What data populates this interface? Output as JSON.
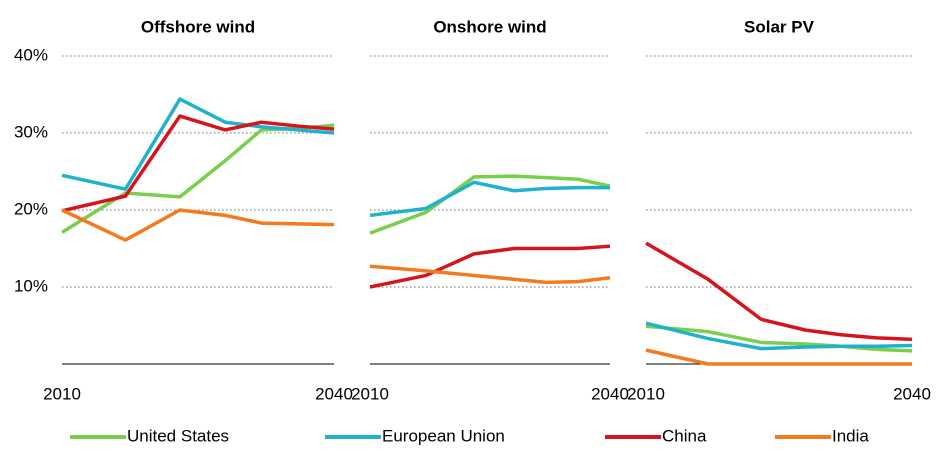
{
  "chart_data": [
    {
      "type": "line",
      "title": "Offshore wind",
      "x": [
        2010,
        2017,
        2023,
        2028,
        2032,
        2036,
        2040
      ],
      "xlim": [
        2010,
        2040
      ],
      "xticks": [
        2010,
        2040
      ],
      "ylim": [
        0,
        40
      ],
      "yticks": [
        {
          "value": 10,
          "label": "10%"
        },
        {
          "value": 20,
          "label": "20%"
        },
        {
          "value": 30,
          "label": "30%"
        },
        {
          "value": 40,
          "label": "40%"
        }
      ],
      "grid": true,
      "series": [
        {
          "values": [
            17.1,
            22.2,
            21.7,
            26.4,
            30.4,
            30.6,
            31.0
          ]
        },
        {
          "values": [
            24.5,
            22.7,
            34.4,
            31.4,
            30.8,
            30.4,
            30.0
          ]
        },
        {
          "values": [
            19.9,
            21.8,
            32.2,
            30.4,
            31.4,
            30.9,
            30.5
          ]
        },
        {
          "values": [
            20.0,
            16.1,
            20.0,
            19.3,
            18.3,
            18.2,
            18.1
          ]
        }
      ]
    },
    {
      "type": "line",
      "title": "Onshore wind",
      "x": [
        2010,
        2017,
        2023,
        2028,
        2032,
        2036,
        2040
      ],
      "xlim": [
        2010,
        2040
      ],
      "xticks": [
        2010,
        2040
      ],
      "ylim": [
        0,
        40
      ],
      "series": [
        {
          "values": [
            17.0,
            19.7,
            24.3,
            24.4,
            24.2,
            24.0,
            23.1
          ]
        },
        {
          "values": [
            19.3,
            20.2,
            23.6,
            22.5,
            22.8,
            22.9,
            22.9
          ]
        },
        {
          "values": [
            10.0,
            11.5,
            14.3,
            15.0,
            15.0,
            15.0,
            15.3
          ]
        },
        {
          "values": [
            12.7,
            12.1,
            11.5,
            11.0,
            10.6,
            10.7,
            11.2
          ]
        }
      ]
    },
    {
      "type": "line",
      "title": "Solar PV",
      "x": [
        2010,
        2017,
        2023,
        2028,
        2032,
        2036,
        2040
      ],
      "xlim": [
        2010,
        2040
      ],
      "xticks": [
        2010,
        2040
      ],
      "ylim": [
        0,
        40
      ],
      "series": [
        {
          "values": [
            4.9,
            4.2,
            2.8,
            2.6,
            2.3,
            1.9,
            1.7
          ]
        },
        {
          "values": [
            5.3,
            3.3,
            2.0,
            2.2,
            2.3,
            2.3,
            2.4
          ]
        },
        {
          "values": [
            15.7,
            11.0,
            5.8,
            4.4,
            3.8,
            3.4,
            3.2
          ]
        },
        {
          "values": [
            1.8,
            0,
            0,
            0,
            0,
            0,
            0
          ]
        }
      ]
    }
  ],
  "legend": [
    {
      "name": "United States",
      "color": "#77cf4c"
    },
    {
      "name": "European Union",
      "color": "#1fb2cb"
    },
    {
      "name": "China",
      "color": "#d7141b"
    },
    {
      "name": "India",
      "color": "#f47a20"
    }
  ]
}
